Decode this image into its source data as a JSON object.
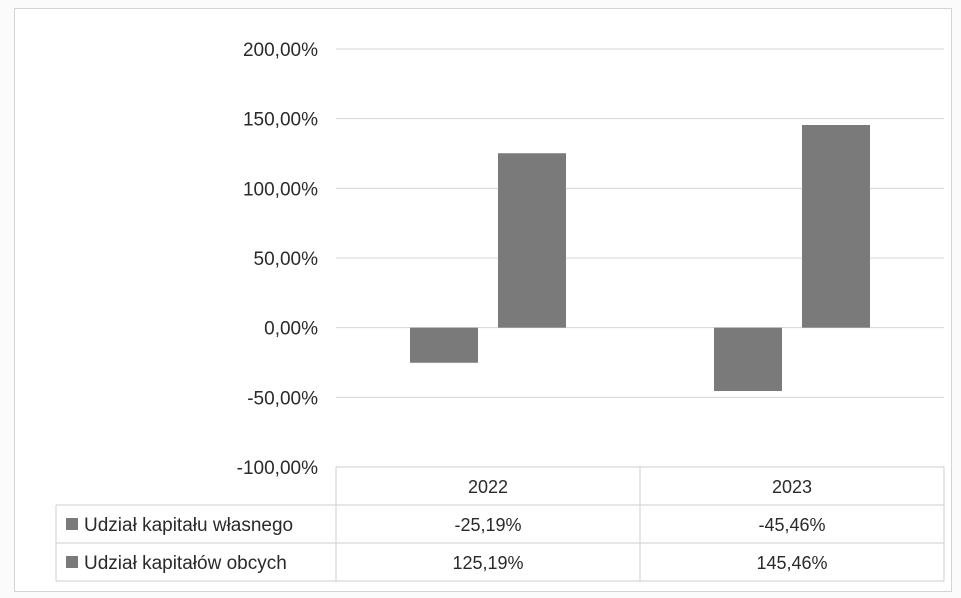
{
  "chart_data": {
    "type": "bar",
    "categories": [
      "2022",
      "2023"
    ],
    "series": [
      {
        "name": "Udział kapitału własnego",
        "values": [
          -25.19,
          -45.46
        ],
        "labels": [
          "-25,19%",
          "-45,46%"
        ],
        "color": "#7a7a7a"
      },
      {
        "name": "Udział kapitałów obcych",
        "values": [
          125.19,
          145.46
        ],
        "labels": [
          "125,19%",
          "145,46%"
        ],
        "color": "#7a7a7a"
      }
    ],
    "ylim": [
      -100,
      200
    ],
    "yticks": [
      {
        "value": 200,
        "label": "200,00%"
      },
      {
        "value": 150,
        "label": "150,00%"
      },
      {
        "value": 100,
        "label": "100,00%"
      },
      {
        "value": 50,
        "label": "50,00%"
      },
      {
        "value": 0,
        "label": "0,00%"
      },
      {
        "value": -50,
        "label": "-50,00%"
      },
      {
        "value": -100,
        "label": "-100,00%"
      }
    ],
    "grid": true,
    "legend": "data-table",
    "title": "",
    "xlabel": "",
    "ylabel": ""
  },
  "colors": {
    "bar": "#7a7a7a",
    "grid": "#d6d6d6",
    "table_border": "#cfcfcf"
  }
}
